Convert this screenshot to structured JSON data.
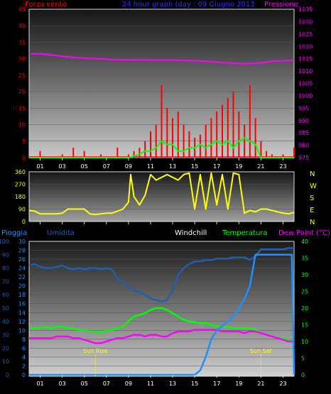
{
  "header": {
    "left_label": "Forza vento",
    "center_label": "24 hour graph (day : 09 Giugno 2013",
    "right_label": "Pressione"
  },
  "bottom_header": {
    "rain_label": "Pioggia",
    "humidity_label": "Umidita",
    "windchill_label": "Windchill",
    "temperature_label": "Temperatura",
    "dewpoint_label": "Dew Point (°C)"
  },
  "sun": {
    "rise_label": "Sun Rise",
    "set_label": "Sun Set",
    "rise_hour": 6,
    "set_hour": 21
  },
  "hour_ticks": [
    "01",
    "03",
    "05",
    "07",
    "09",
    "11",
    "13",
    "15",
    "17",
    "19",
    "21",
    "23"
  ],
  "colors": {
    "wind": "#ff0000",
    "gust": "#00ff00",
    "pressure": "#ff00ff",
    "direction": "#ffff00",
    "rain": "#1e90ff",
    "humidity": "#1f5fb0",
    "temperature": "#00ff00",
    "dewpoint": "#ff00ff",
    "axis_left": "#ff0000",
    "axis_pressure": "#ff00ff",
    "axis_rain": "#1e90ff",
    "axis_temp": "#00ff00",
    "title_blue": "#3030ff"
  },
  "chart_data": [
    {
      "type": "bar",
      "name": "wind-panel",
      "ylim_left": [
        0,
        45
      ],
      "left_ticks": [
        "0",
        "5",
        "10",
        "15",
        "20",
        "25",
        "30",
        "35",
        "40",
        "45"
      ],
      "ylim_right": [
        975,
        1035
      ],
      "right_ticks": [
        "975",
        "980",
        "985",
        "990",
        "995",
        "1000",
        "1005",
        "1010",
        "1015",
        "1020",
        "1025",
        "1030",
        "1035"
      ],
      "wind_speed": {
        "x": [
          0,
          0.5,
          1,
          1.5,
          2,
          2.5,
          3,
          3.5,
          4,
          4.5,
          5,
          5.5,
          6,
          6.5,
          7,
          7.5,
          8,
          8.5,
          9,
          9.5,
          10,
          10.5,
          11,
          11.5,
          12,
          12.5,
          13,
          13.5,
          14,
          14.5,
          15,
          15.5,
          16,
          16.5,
          17,
          17.5,
          18,
          18.5,
          19,
          19.5,
          20,
          20.5,
          21,
          21.5,
          22,
          22.5,
          23,
          23.5,
          24
        ],
        "y": [
          0,
          0,
          2,
          0,
          0,
          0,
          1,
          0,
          3,
          0,
          2,
          0,
          0,
          1,
          0,
          0,
          3,
          0,
          1,
          2,
          3,
          5,
          8,
          10,
          22,
          15,
          12,
          14,
          10,
          8,
          6,
          7,
          10,
          12,
          14,
          16,
          18,
          20,
          14,
          10,
          22,
          12,
          5,
          2,
          1,
          0,
          1,
          0,
          3
        ]
      },
      "wind_gust": {
        "x": [
          0,
          1,
          2,
          3,
          4,
          5,
          6,
          7,
          8,
          9,
          9.5,
          10,
          10.5,
          11,
          11.5,
          12,
          12.5,
          13,
          13.5,
          14,
          14.5,
          15,
          15.5,
          16,
          16.5,
          17,
          17.5,
          18,
          18.5,
          19,
          19.5,
          20,
          20.5,
          21,
          22,
          23,
          24
        ],
        "y": [
          0,
          0,
          0,
          0,
          0,
          0,
          0,
          0,
          0,
          0,
          0.5,
          1,
          2,
          2,
          3,
          5,
          4,
          4,
          2,
          2,
          3,
          3,
          4,
          3,
          4,
          5,
          4,
          5,
          3,
          5,
          6,
          5,
          4,
          0,
          0,
          0,
          0
        ]
      },
      "pressure": {
        "x": [
          0,
          1,
          2,
          3,
          4,
          5,
          6,
          7,
          8,
          9,
          10,
          11,
          12,
          13,
          14,
          15,
          16,
          17,
          18,
          19,
          20,
          21,
          22,
          23,
          24
        ],
        "y": [
          1017,
          1017,
          1016.5,
          1016,
          1015.5,
          1015.2,
          1015,
          1014.8,
          1014.6,
          1014.5,
          1014.5,
          1014.4,
          1014.4,
          1014.4,
          1014.3,
          1014.2,
          1014,
          1013.6,
          1013.3,
          1013,
          1013,
          1013.3,
          1014,
          1014.2,
          1014.3
        ]
      }
    },
    {
      "type": "line",
      "name": "direction-panel",
      "ylim": [
        0,
        360
      ],
      "left_ticks": [
        "0",
        "90",
        "180",
        "270",
        "360"
      ],
      "right_labels": [
        "N",
        "W",
        "S",
        "E",
        "N"
      ],
      "direction": {
        "x": [
          0,
          0.5,
          1,
          1.5,
          2,
          2.5,
          3,
          3.5,
          4,
          4.5,
          5,
          5.5,
          6,
          6.5,
          7,
          7.5,
          8,
          8.5,
          9,
          9.2,
          9.5,
          10,
          10.5,
          11,
          11.5,
          12,
          12.5,
          13,
          13.5,
          14,
          14.5,
          15,
          15.5,
          16,
          16.5,
          17,
          17.5,
          18,
          18.5,
          19,
          19.5,
          20,
          20.5,
          21,
          21.5,
          22,
          22.5,
          23,
          23.5,
          24
        ],
        "y": [
          80,
          75,
          55,
          55,
          55,
          55,
          60,
          90,
          90,
          90,
          90,
          55,
          50,
          55,
          60,
          60,
          75,
          90,
          140,
          340,
          180,
          120,
          190,
          340,
          300,
          320,
          340,
          320,
          300,
          340,
          350,
          90,
          340,
          90,
          350,
          120,
          340,
          90,
          350,
          340,
          60,
          80,
          70,
          90,
          90,
          80,
          70,
          60,
          55,
          65
        ]
      }
    },
    {
      "type": "line",
      "name": "temperature-panel",
      "ylim_rain": [
        0,
        30
      ],
      "rain_ticks": [
        "0",
        "2",
        "4",
        "6",
        "8",
        "10",
        "12",
        "14",
        "16",
        "18",
        "20",
        "22",
        "24",
        "26",
        "28",
        "30"
      ],
      "ylim_humidity": [
        0,
        100
      ],
      "humidity_ticks": [
        "0",
        "10",
        "20",
        "30",
        "40",
        "50",
        "60",
        "70",
        "80",
        "90",
        "100"
      ],
      "ylim_temp": [
        0,
        40
      ],
      "temp_ticks": [
        "0",
        "5",
        "10",
        "15",
        "20",
        "25",
        "30",
        "35",
        "40"
      ],
      "humidity": {
        "x": [
          0,
          0.5,
          1,
          1.5,
          2,
          2.5,
          3,
          3.5,
          4,
          4.5,
          5,
          5.5,
          6,
          6.5,
          7,
          7.5,
          8,
          8.5,
          9,
          9.5,
          10,
          10.5,
          11,
          11.5,
          12,
          12.5,
          13,
          13.5,
          14,
          14.5,
          15,
          15.5,
          16,
          16.5,
          17,
          17.5,
          18,
          18.5,
          19,
          19.5,
          20,
          20.5,
          21,
          21.5,
          22,
          22.5,
          23,
          23.5,
          24
        ],
        "y": [
          82,
          83,
          81,
          80,
          80,
          81,
          82,
          80,
          79,
          80,
          79,
          80,
          80,
          79,
          80,
          79,
          72,
          70,
          66,
          63,
          62,
          60,
          57,
          56,
          55,
          56,
          63,
          75,
          80,
          83,
          85,
          85,
          86,
          86,
          87,
          87,
          87,
          88,
          88,
          88,
          86,
          89,
          94,
          94,
          94,
          94,
          94,
          95,
          95
        ]
      },
      "temperature": {
        "x": [
          0,
          0.5,
          1,
          1.5,
          2,
          2.5,
          3,
          3.5,
          4,
          4.5,
          5,
          5.5,
          6,
          6.5,
          7,
          7.5,
          8,
          8.5,
          9,
          9.5,
          10,
          10.5,
          11,
          11.5,
          12,
          12.5,
          13,
          13.5,
          14,
          14.5,
          15,
          15.5,
          16,
          16.5,
          17,
          17.5,
          18,
          18.5,
          19,
          19.5,
          20,
          20.5,
          21,
          21.5,
          22,
          22.5,
          23,
          23.5,
          24
        ],
        "y": [
          14,
          14,
          14,
          14.5,
          14,
          14.5,
          14.5,
          14,
          14,
          13.5,
          13.5,
          13,
          13,
          12.8,
          13.2,
          13.5,
          14,
          14.5,
          16,
          17.5,
          18,
          18.5,
          19.5,
          20,
          20,
          19.5,
          18.5,
          17.5,
          16.5,
          16,
          15.8,
          15.5,
          15.5,
          15,
          14.5,
          14.5,
          14.3,
          14,
          14,
          14,
          14,
          13.5,
          12.5,
          12,
          11.5,
          11,
          11,
          10.5,
          10
        ]
      },
      "dewpoint": {
        "x": [
          0,
          0.5,
          1,
          1.5,
          2,
          2.5,
          3,
          3.5,
          4,
          4.5,
          5,
          5.5,
          6,
          6.5,
          7,
          7.5,
          8,
          8.5,
          9,
          9.5,
          10,
          10.5,
          11,
          11.5,
          12,
          12.5,
          13,
          13.5,
          14,
          14.5,
          15,
          15.5,
          16,
          16.5,
          17,
          17.5,
          18,
          18.5,
          19,
          19.5,
          20,
          20.5,
          21,
          21.5,
          22,
          22.5,
          23,
          23.5,
          24
        ],
        "y": [
          11,
          11,
          11,
          11,
          11,
          11.5,
          11.5,
          11.5,
          11,
          11,
          10.5,
          10,
          9.5,
          9.5,
          10,
          10.5,
          11,
          11,
          11.5,
          12,
          12,
          11.5,
          12,
          12,
          11.5,
          11.5,
          12.5,
          13,
          13,
          13,
          13.5,
          13.5,
          13.5,
          13.5,
          13.5,
          13,
          13,
          13,
          13,
          12.5,
          13,
          13,
          12.5,
          12,
          11.5,
          11,
          10.5,
          10,
          10
        ]
      },
      "rain": {
        "x": [
          0,
          1,
          2,
          3,
          4,
          5,
          6,
          7,
          8,
          9,
          10,
          11,
          12,
          13,
          14,
          15,
          15.5,
          16,
          16.5,
          17,
          17.5,
          18,
          18.5,
          19,
          19.5,
          20,
          20.5,
          21,
          21.5,
          22,
          23,
          23.8,
          24
        ],
        "y": [
          0,
          0,
          0,
          0,
          0,
          0,
          0,
          0,
          0,
          0,
          0,
          0,
          0,
          0,
          0,
          0,
          1,
          4,
          8,
          10,
          11,
          12,
          13,
          15,
          17,
          20,
          27,
          27,
          27,
          27,
          27,
          27,
          0
        ]
      }
    }
  ]
}
